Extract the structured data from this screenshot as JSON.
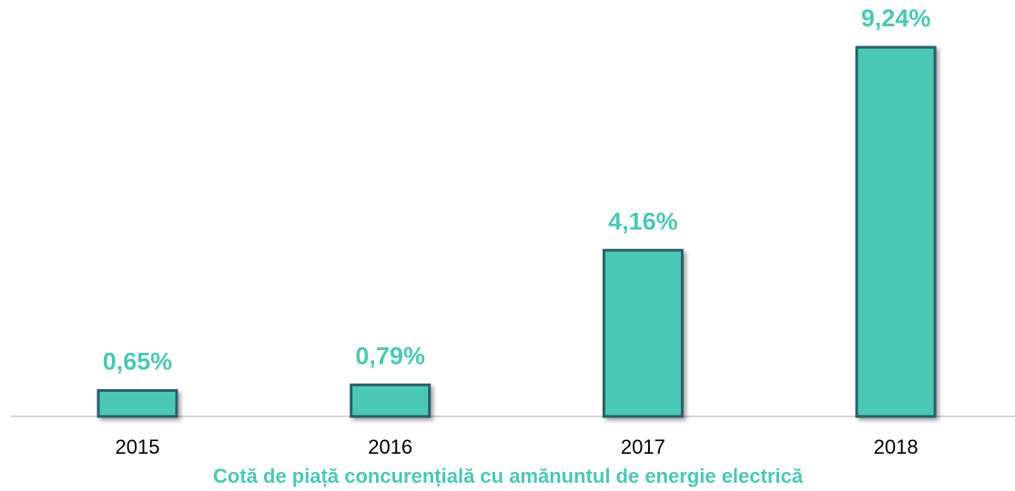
{
  "chart_data": {
    "type": "bar",
    "title": "Cotă de piață concurențială cu amănuntul de energie electrică",
    "categories": [
      "2015",
      "2016",
      "2017",
      "2018"
    ],
    "values": [
      0.65,
      0.79,
      4.16,
      9.24
    ],
    "value_labels": [
      "0,65%",
      "0,79%",
      "4,16%",
      "9,24%"
    ],
    "color": "#4bc8b3"
  }
}
